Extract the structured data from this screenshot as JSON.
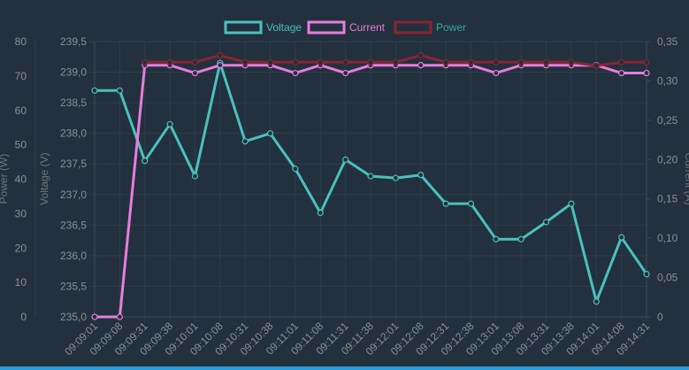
{
  "chart_data": {
    "type": "line",
    "legend": {
      "position": "top-center"
    },
    "categories": [
      "09:09:01",
      "09:09:08",
      "09:09:31",
      "09:09:38",
      "09:10:01",
      "09:10:08",
      "09:10:31",
      "09:10:38",
      "09:11:01",
      "09:11:08",
      "09:11:31",
      "09:11:38",
      "09:12:01",
      "09:12:08",
      "09:12:31",
      "09:12:38",
      "09:13:01",
      "09:13:08",
      "09:13:31",
      "09:13:38",
      "09:14:01",
      "09:14:08",
      "09:14:31"
    ],
    "axes": {
      "power": {
        "label": "Power (W)",
        "range": [
          0,
          80
        ],
        "ticks": [
          "0",
          "10",
          "20",
          "30",
          "40",
          "50",
          "60",
          "70",
          "80"
        ]
      },
      "voltage": {
        "label": "Voltage (V)",
        "range": [
          235.0,
          239.5
        ],
        "ticks": [
          "235,0",
          "235,5",
          "236,0",
          "236,5",
          "237,0",
          "237,5",
          "238,0",
          "238,5",
          "239,0",
          "239,5"
        ]
      },
      "current": {
        "label": "Current (A)",
        "range": [
          0,
          0.35
        ],
        "ticks": [
          "0",
          "0,05",
          "0,10",
          "0,15",
          "0,20",
          "0,25",
          "0,30",
          "0,35"
        ]
      }
    },
    "series": [
      {
        "name": "Voltage",
        "axis": "voltage",
        "color": "#4bc0c0",
        "values": [
          238.7,
          238.7,
          237.55,
          238.15,
          237.3,
          239.15,
          237.87,
          238.0,
          237.42,
          236.7,
          237.57,
          237.3,
          237.27,
          237.32,
          236.85,
          236.85,
          236.27,
          236.27,
          236.55,
          236.85,
          235.25,
          236.3,
          235.7
        ]
      },
      {
        "name": "Current",
        "axis": "current",
        "color": "#e87ddd",
        "values": [
          0,
          0,
          0.32,
          0.32,
          0.31,
          0.32,
          0.32,
          0.32,
          0.31,
          0.32,
          0.31,
          0.32,
          0.32,
          0.32,
          0.32,
          0.32,
          0.31,
          0.32,
          0.32,
          0.32,
          0.32,
          0.31,
          0.31
        ]
      },
      {
        "name": "Power",
        "axis": "power",
        "color": "#8b2335",
        "values": [
          null,
          null,
          74,
          74,
          74,
          76,
          74,
          74,
          74,
          74,
          74,
          74,
          74,
          76,
          74,
          74,
          74,
          74,
          74,
          74,
          73,
          74,
          74
        ]
      }
    ]
  }
}
